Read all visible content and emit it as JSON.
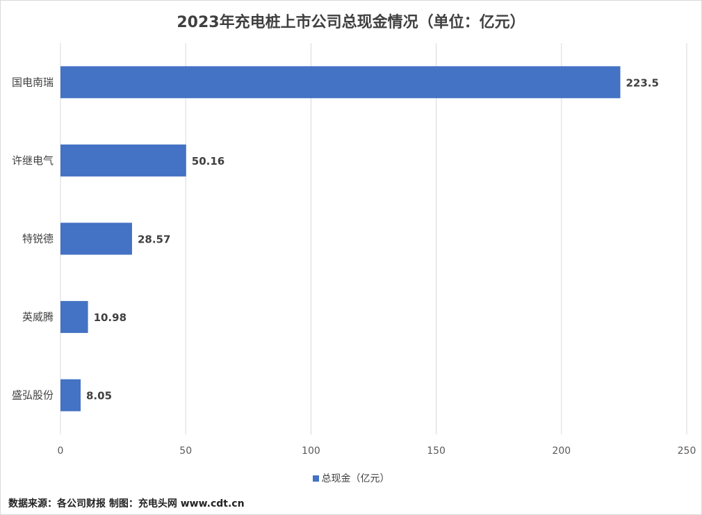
{
  "chart_data": {
    "type": "bar",
    "orientation": "horizontal",
    "title": "2023年充电桩上市公司总现金情况（单位：亿元）",
    "categories": [
      "国电南瑞",
      "许继电气",
      "特锐德",
      "英威腾",
      "盛弘股份"
    ],
    "series": [
      {
        "name": "总现金（亿元）",
        "values": [
          223.5,
          50.16,
          28.57,
          10.98,
          8.05
        ],
        "color": "#4472c4"
      }
    ],
    "data_labels": [
      "223.5",
      "50.16",
      "28.57",
      "10.98",
      "8.05"
    ],
    "xlim": [
      0,
      250
    ],
    "x_ticks": [
      0,
      50,
      100,
      150,
      200,
      250
    ],
    "grid": "vertical",
    "legend_position": "bottom"
  },
  "footer": {
    "source": "数据来源：各公司财报  制图：充电头网 www.cdt.cn"
  }
}
